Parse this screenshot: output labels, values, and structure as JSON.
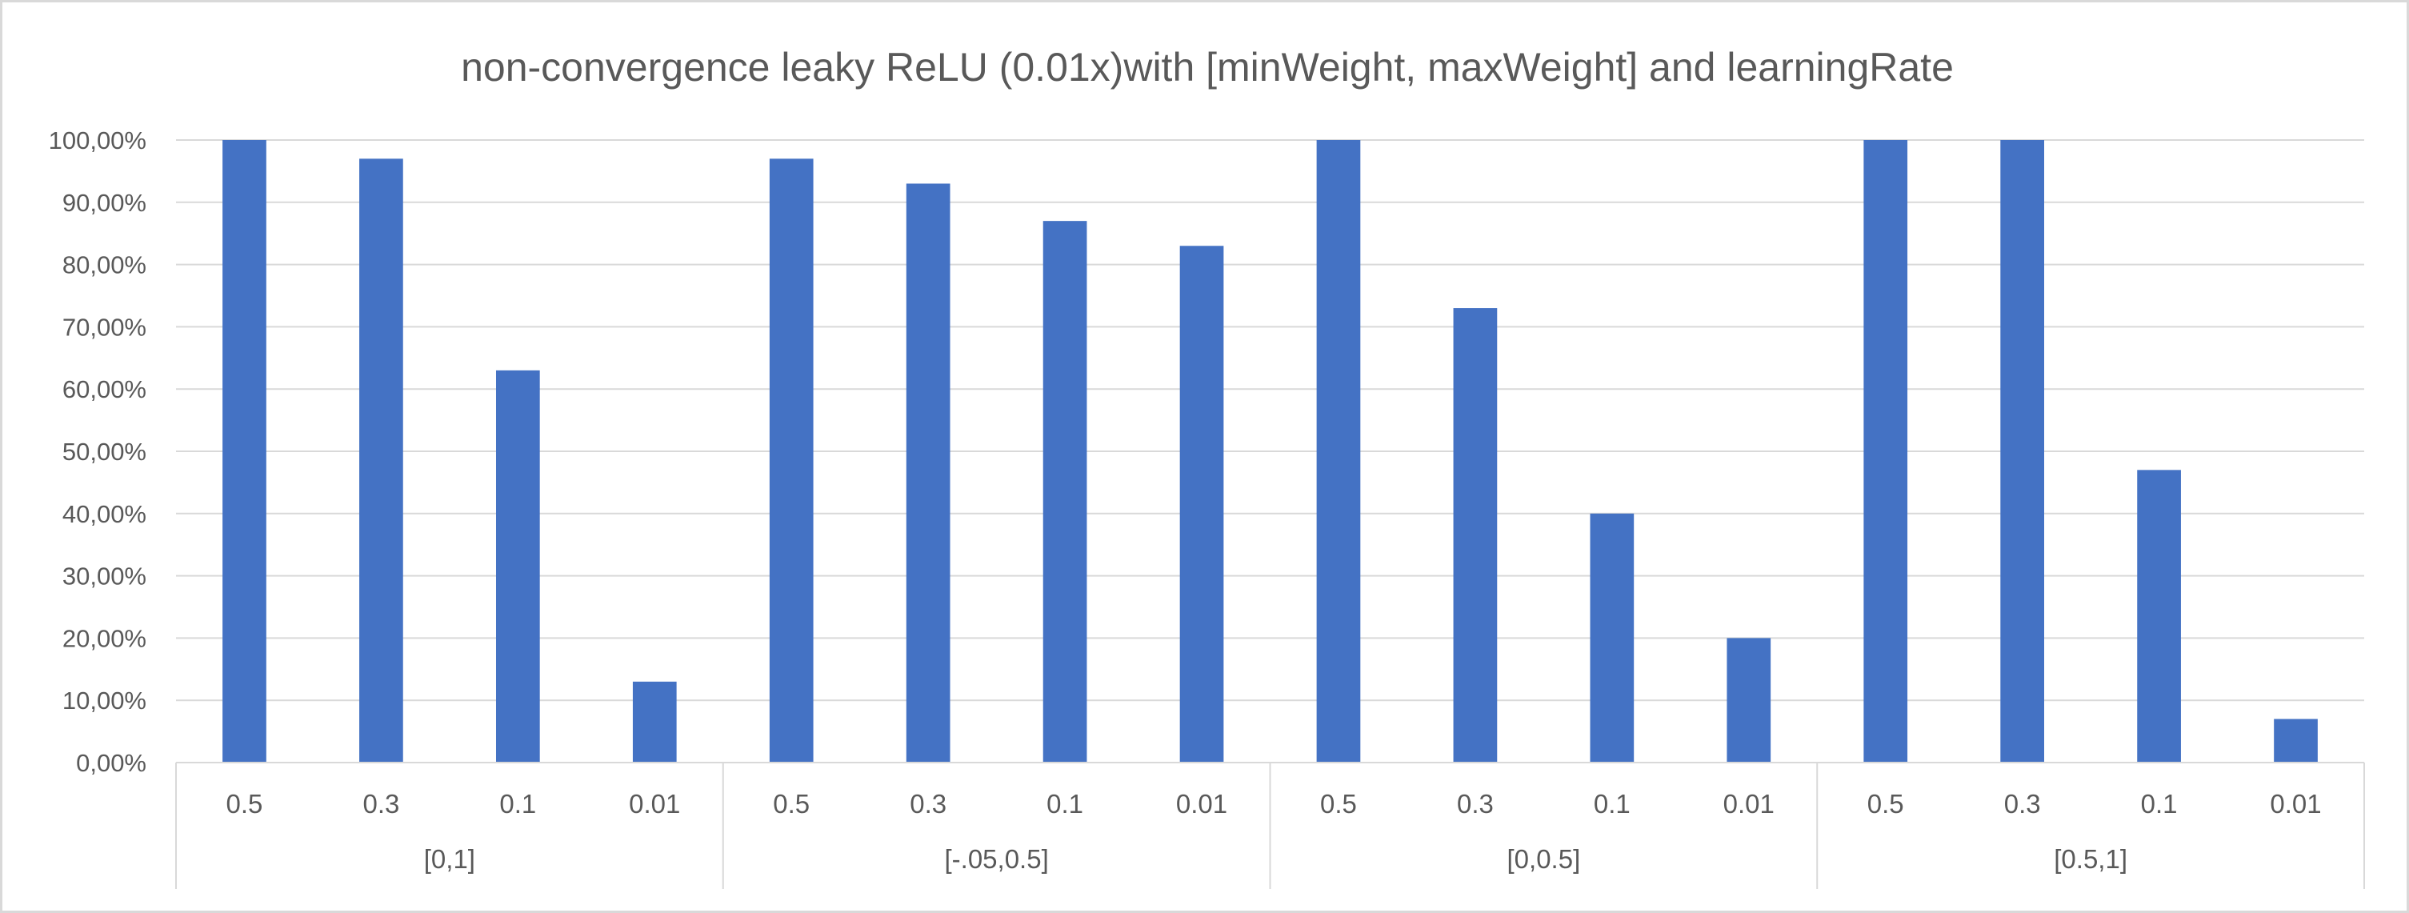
{
  "chart_data": {
    "type": "bar",
    "title": "non-convergence leaky ReLU (0.01x)with [minWeight, maxWeight] and learningRate",
    "xlabel": "",
    "ylabel": "",
    "ylim": [
      0,
      1
    ],
    "y_ticks": [
      {
        "value": 0.0,
        "label": "0,00%"
      },
      {
        "value": 0.1,
        "label": "10,00%"
      },
      {
        "value": 0.2,
        "label": "20,00%"
      },
      {
        "value": 0.3,
        "label": "30,00%"
      },
      {
        "value": 0.4,
        "label": "40,00%"
      },
      {
        "value": 0.5,
        "label": "50,00%"
      },
      {
        "value": 0.6,
        "label": "60,00%"
      },
      {
        "value": 0.7,
        "label": "70,00%"
      },
      {
        "value": 0.8,
        "label": "80,00%"
      },
      {
        "value": 0.9,
        "label": "90,00%"
      },
      {
        "value": 1.0,
        "label": "100,00%"
      }
    ],
    "grid": true,
    "legend": "none",
    "bar_color": "#4472c4",
    "groups": [
      {
        "label": "[0,1]",
        "categories": [
          "0.5",
          "0.3",
          "0.1",
          "0.01"
        ],
        "values": [
          1.0,
          0.97,
          0.63,
          0.13
        ]
      },
      {
        "label": "[-.05,0.5]",
        "categories": [
          "0.5",
          "0.3",
          "0.1",
          "0.01"
        ],
        "values": [
          0.97,
          0.93,
          0.87,
          0.83
        ]
      },
      {
        "label": "[0,0.5]",
        "categories": [
          "0.5",
          "0.3",
          "0.1",
          "0.01"
        ],
        "values": [
          1.0,
          0.73,
          0.4,
          0.2
        ]
      },
      {
        "label": "[0.5,1]",
        "categories": [
          "0.5",
          "0.3",
          "0.1",
          "0.01"
        ],
        "values": [
          1.0,
          1.0,
          0.47,
          0.07
        ]
      }
    ]
  }
}
